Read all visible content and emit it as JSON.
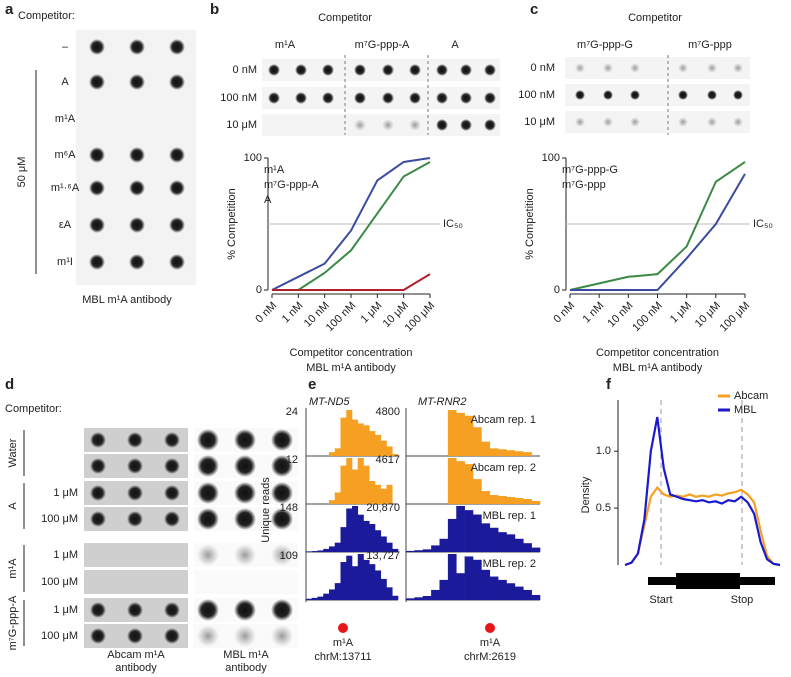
{
  "panels": {
    "a": {
      "letter": "a",
      "competitor_label": "Competitor:",
      "rows": [
        "–",
        "A",
        "m¹A",
        "m⁶A",
        "m¹·⁶A",
        "εA",
        "m¹I"
      ],
      "concentration": "50 μM",
      "caption": "MBL m¹A antibody"
    },
    "b": {
      "letter": "b",
      "competitor_label": "Competitor",
      "blot_columns": [
        {
          "label": "m¹A",
          "color": "#3b4ba0"
        },
        {
          "label": "m⁷G-ppp-A",
          "color": "#3a8a45"
        },
        {
          "label": "A",
          "color": "#b0202a"
        }
      ],
      "blot_rows": [
        "0 nM",
        "100 nM",
        "10 μM"
      ],
      "chart_data": {
        "type": "line",
        "categories": [
          "0 nM",
          "1 nM",
          "10 nM",
          "100 nM",
          "1 μM",
          "10 μM",
          "100 μM"
        ],
        "ylim": [
          0,
          100
        ],
        "yticks": [
          0,
          100
        ],
        "ylabel": "% Competition",
        "xlabel": [
          "Competitor concentration",
          "MBL m¹A antibody"
        ],
        "reference_line": {
          "value": 50,
          "label": "IC₅₀"
        },
        "series": [
          {
            "name": "m¹A",
            "color": "#3b4ba0",
            "values": [
              0,
              10,
              20,
              45,
              83,
              97,
              100
            ]
          },
          {
            "name": "m⁷G-ppp-A",
            "color": "#3a8a45",
            "values": [
              0,
              0,
              13,
              30,
              58,
              86,
              97
            ]
          },
          {
            "name": "A",
            "color": "#b0202a",
            "values": [
              0,
              0,
              0,
              0,
              0,
              0,
              12
            ]
          }
        ]
      }
    },
    "c": {
      "letter": "c",
      "competitor_label": "Competitor",
      "blot_columns": [
        {
          "label": "m⁷G-ppp-G",
          "color": "#3a8a45"
        },
        {
          "label": "m⁷G-ppp",
          "color": "#3b4ba0"
        }
      ],
      "blot_rows": [
        "0 nM",
        "100 nM",
        "10 μM"
      ],
      "chart_data": {
        "type": "line",
        "categories": [
          "0 nM",
          "1 nM",
          "10 nM",
          "100 nM",
          "1 μM",
          "10 μM",
          "100 μM"
        ],
        "ylim": [
          0,
          100
        ],
        "yticks": [
          0,
          100
        ],
        "ylabel": "% Competition",
        "xlabel": [
          "Competitor concentration",
          "MBL m¹A antibody"
        ],
        "reference_line": {
          "value": 50,
          "label": "IC₅₀"
        },
        "series": [
          {
            "name": "m⁷G-ppp-G",
            "color": "#3a8a45",
            "values": [
              0,
              5,
              10,
              12,
              33,
              82,
              97
            ]
          },
          {
            "name": "m⁷G-ppp",
            "color": "#3b4ba0",
            "values": [
              0,
              0,
              0,
              0,
              24,
              50,
              88
            ]
          }
        ]
      }
    },
    "d": {
      "letter": "d",
      "competitor_label": "Competitor:",
      "groups": [
        {
          "label": "Water"
        },
        {
          "label": "A",
          "concentrations": [
            "1 μM",
            "100 μM"
          ]
        },
        {
          "label": "m¹A",
          "concentrations": [
            "1 μM",
            "100 μM"
          ]
        },
        {
          "label": "m⁷G-ppp-A",
          "concentrations": [
            "1 μM",
            "100 μM"
          ]
        }
      ],
      "columns": [
        [
          "Abcam m¹A",
          "antibody"
        ],
        [
          "MBL m¹A",
          "antibody"
        ]
      ]
    },
    "e": {
      "letter": "e",
      "ylabel": "Unique reads",
      "regions": [
        {
          "gene": "MT-ND5",
          "site_label": "m¹A",
          "position": "chrM:13711",
          "tracks": [
            {
              "color": "#f5a023",
              "max": 24,
              "values": [
                0,
                0,
                0,
                0,
                2,
                4,
                20,
                24,
                19,
                17,
                16,
                13,
                11,
                8,
                5,
                1
              ]
            },
            {
              "color": "#f5a023",
              "max": 12,
              "values": [
                0,
                0,
                0,
                0,
                1,
                3,
                10,
                12,
                9,
                12,
                10,
                6,
                5,
                4,
                5,
                0
              ]
            },
            {
              "color": "#1a1a9a",
              "max": 148,
              "values": [
                2,
                3,
                5,
                10,
                18,
                30,
                80,
                140,
                148,
                120,
                100,
                90,
                70,
                50,
                30,
                10
              ]
            },
            {
              "color": "#1a1a9a",
              "max": 109,
              "values": [
                3,
                5,
                8,
                15,
                25,
                40,
                90,
                105,
                80,
                109,
                95,
                85,
                70,
                50,
                30,
                10
              ]
            }
          ]
        },
        {
          "gene": "MT-RNR2",
          "site_label": "m¹A",
          "position": "chrM:2619",
          "tracks": [
            {
              "name": "Abcam rep. 1",
              "color": "#f5a023",
              "max": 4800,
              "values": [
                0,
                0,
                0,
                0,
                0,
                4800,
                4500,
                4200,
                3000,
                1500,
                800,
                700,
                600,
                500,
                400,
                0
              ]
            },
            {
              "name": "Abcam rep. 2",
              "color": "#f5a023",
              "max": 4617,
              "values": [
                0,
                0,
                0,
                0,
                0,
                4617,
                4300,
                4000,
                2500,
                1300,
                900,
                800,
                700,
                600,
                500,
                300
              ]
            },
            {
              "name": "MBL rep. 1",
              "color": "#1a1a9a",
              "max": {
                "value": 20870,
                "label": "20,870"
              },
              "values": [
                500,
                800,
                1200,
                3000,
                6000,
                15000,
                20870,
                19000,
                17000,
                13000,
                11000,
                9000,
                8000,
                6000,
                4000,
                2000
              ]
            },
            {
              "name": "MBL rep. 2",
              "color": "#1a1a9a",
              "max": {
                "value": 13727,
                "label": "13,727"
              },
              "values": [
                500,
                800,
                1200,
                3000,
                6000,
                13727,
                8000,
                13000,
                12000,
                9000,
                7000,
                6000,
                5000,
                4000,
                3000,
                1500
              ]
            }
          ]
        }
      ]
    },
    "f": {
      "letter": "f",
      "chart_data": {
        "type": "line",
        "ylabel": "Density",
        "ylim": [
          0,
          1.45
        ],
        "yticks": [
          0.5,
          {
            "value": 1,
            "label": "1.0"
          }
        ],
        "legend": "top-right",
        "gene_labels": [
          "Start",
          "Stop"
        ],
        "series": [
          {
            "name": "Abcam",
            "color": "#f5a023",
            "values": [
              0,
              0.02,
              0.1,
              0.35,
              0.6,
              0.68,
              0.62,
              0.6,
              0.61,
              0.6,
              0.62,
              0.6,
              0.61,
              0.6,
              0.62,
              0.61,
              0.63,
              0.64,
              0.66,
              0.62,
              0.55,
              0.3,
              0.08,
              0.01,
              0
            ]
          },
          {
            "name": "MBL",
            "color": "#1a1acc",
            "values": [
              0,
              0.02,
              0.1,
              0.4,
              1.0,
              1.3,
              0.85,
              0.62,
              0.6,
              0.58,
              0.57,
              0.56,
              0.57,
              0.55,
              0.56,
              0.54,
              0.57,
              0.56,
              0.6,
              0.55,
              0.45,
              0.2,
              0.05,
              0.01,
              0
            ]
          }
        ]
      }
    }
  }
}
